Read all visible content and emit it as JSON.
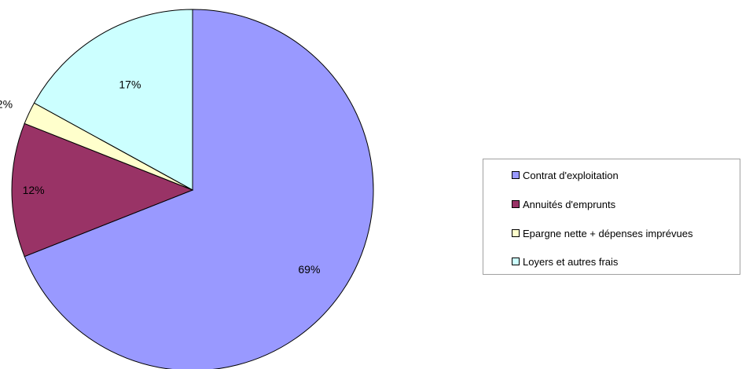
{
  "chart_data": {
    "type": "pie",
    "categories": [
      "Contrat d'exploitation",
      "Annuités d'emprunts",
      "Epargne nette + dépenses imprévues",
      "Loyers et autres frais"
    ],
    "values": [
      69,
      12,
      2,
      17
    ],
    "labels": [
      "69%",
      "12%",
      "2%",
      "17%"
    ],
    "colors": [
      "#9999ff",
      "#993366",
      "#ffffcc",
      "#ccffff"
    ],
    "start_angle_deg": 0,
    "direction": "clockwise",
    "legend": "right"
  }
}
